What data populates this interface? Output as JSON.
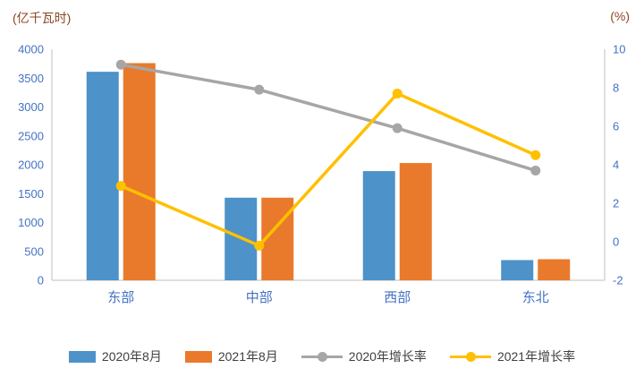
{
  "chart_data": {
    "type": "combo_bar_line",
    "categories": [
      "东部",
      "中部",
      "西部",
      "东北"
    ],
    "bar_series": [
      {
        "name": "2020年8月",
        "color": "#4D92C9",
        "axis": "left",
        "values": [
          3610,
          1430,
          1890,
          350
        ]
      },
      {
        "name": "2021年8月",
        "color": "#E97A2B",
        "axis": "left",
        "values": [
          3760,
          1430,
          2030,
          365
        ]
      }
    ],
    "line_series": [
      {
        "name": "2020年增长率",
        "color": "#A6A6A6",
        "axis": "right",
        "values": [
          9.2,
          7.9,
          5.9,
          3.7
        ]
      },
      {
        "name": "2021年增长率",
        "color": "#FFC000",
        "axis": "right",
        "values": [
          2.9,
          -0.2,
          7.7,
          4.5
        ]
      }
    ],
    "left_axis": {
      "unit": "(亿千瓦时)",
      "min": 0,
      "max": 4000,
      "step": 500
    },
    "right_axis": {
      "unit": "(%)",
      "min": -2,
      "max": 10,
      "step": 2
    },
    "grid": false,
    "legend_position": "bottom",
    "colors": {
      "axis_labels": "#4472C4",
      "unit_labels": "#8C4520",
      "legend_text": "#404040",
      "axis_line": "#BFBFBF"
    }
  }
}
